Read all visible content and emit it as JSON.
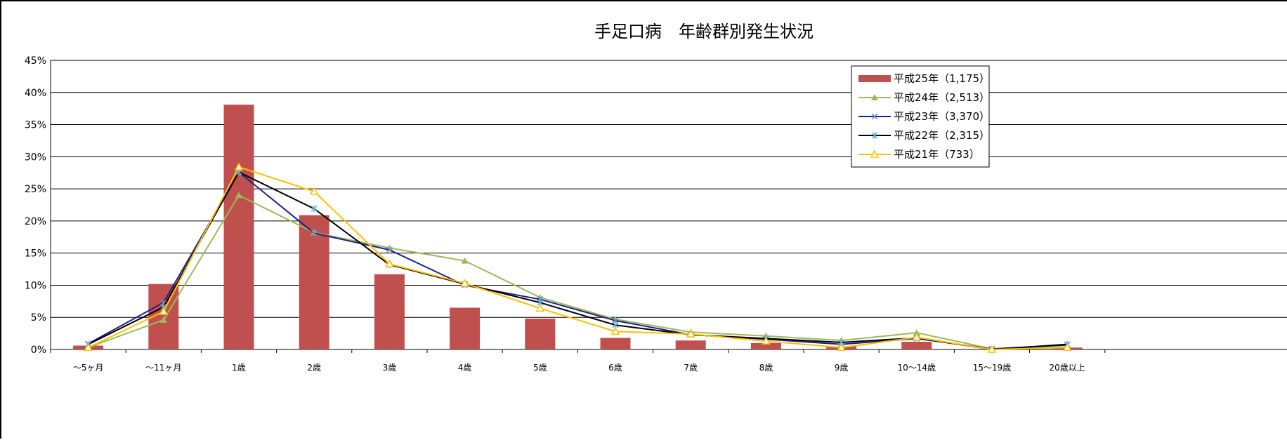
{
  "chart_data": {
    "type": "bar",
    "title": "手足口病　年齢群別発生状況",
    "categories": [
      "～5ヶ月",
      "～11ヶ月",
      "1歳",
      "2歳",
      "3歳",
      "4歳",
      "5歳",
      "6歳",
      "7歳",
      "8歳",
      "9歳",
      "10～14歳",
      "15～19歳",
      "20歳以上"
    ],
    "y_ticks": [
      "0%",
      "5%",
      "10%",
      "15%",
      "20%",
      "25%",
      "30%",
      "35%",
      "40%",
      "45%"
    ],
    "ylim": [
      0,
      45
    ],
    "grid": true,
    "legend_position": "top-right",
    "bar_series": {
      "name": "平成25年（1,175）",
      "color": "#c0504d",
      "values": [
        0.6,
        10.2,
        38.1,
        20.9,
        11.7,
        6.5,
        4.8,
        1.8,
        1.4,
        1.0,
        0.5,
        1.2,
        0.0,
        0.3
      ]
    },
    "series": [
      {
        "name": "平成24年（2,513）",
        "color": "#9bbb59",
        "marker": "triangle",
        "values": [
          0.3,
          4.6,
          24.0,
          18.2,
          15.8,
          13.8,
          8.1,
          4.7,
          2.7,
          2.1,
          1.4,
          2.6,
          0.1,
          0.4
        ]
      },
      {
        "name": "平成23年（3,370）",
        "color": "#1f1f8f",
        "marker": "x",
        "values": [
          0.9,
          7.3,
          27.6,
          18.1,
          15.5,
          10.0,
          7.8,
          4.5,
          2.3,
          1.6,
          0.8,
          1.7,
          0.1,
          0.7
        ]
      },
      {
        "name": "平成22年（2,315）",
        "color": "#000000",
        "marker": "star",
        "values": [
          0.8,
          6.6,
          27.6,
          21.9,
          13.2,
          10.2,
          7.3,
          3.8,
          2.3,
          1.7,
          1.1,
          1.8,
          0.0,
          0.8
        ]
      },
      {
        "name": "平成21年（733）",
        "color": "#ffc000",
        "marker": "triangle-open",
        "values": [
          0.3,
          5.9,
          28.4,
          24.6,
          13.3,
          10.3,
          6.4,
          2.8,
          2.4,
          1.3,
          0.3,
          1.9,
          0.0,
          0.3
        ]
      }
    ]
  }
}
